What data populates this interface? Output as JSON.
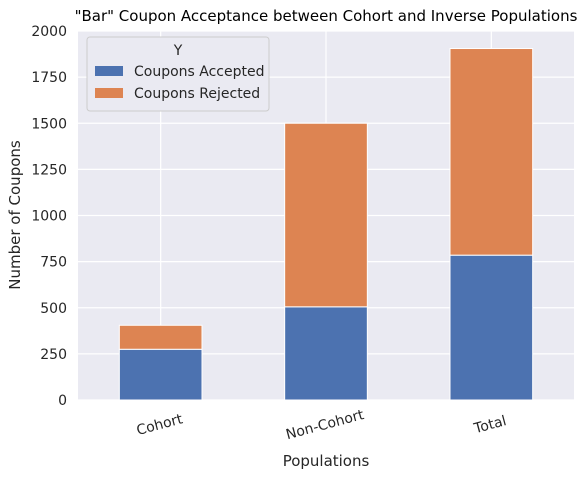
{
  "chart_data": {
    "type": "bar",
    "stacked": true,
    "title": "\"Bar\" Coupon Acceptance between Cohort and Inverse Populations",
    "xlabel": "Populations",
    "ylabel": "Number of Coupons",
    "categories": [
      "Cohort",
      "Non-Cohort",
      "Total"
    ],
    "series": [
      {
        "name": "Coupons Accepted",
        "values": [
          275,
          505,
          785
        ],
        "color": "#4C72B0"
      },
      {
        "name": "Coupons Rejected",
        "values": [
          130,
          995,
          1120
        ],
        "color": "#DD8452"
      }
    ],
    "ylim": [
      0,
      2000
    ],
    "yticks": [
      0,
      250,
      500,
      750,
      1000,
      1250,
      1500,
      1750,
      2000
    ],
    "legend": {
      "title": "Y",
      "position": "top-left"
    },
    "grid": true,
    "background": "#EAEAF2",
    "xtick_rotation": -15
  }
}
